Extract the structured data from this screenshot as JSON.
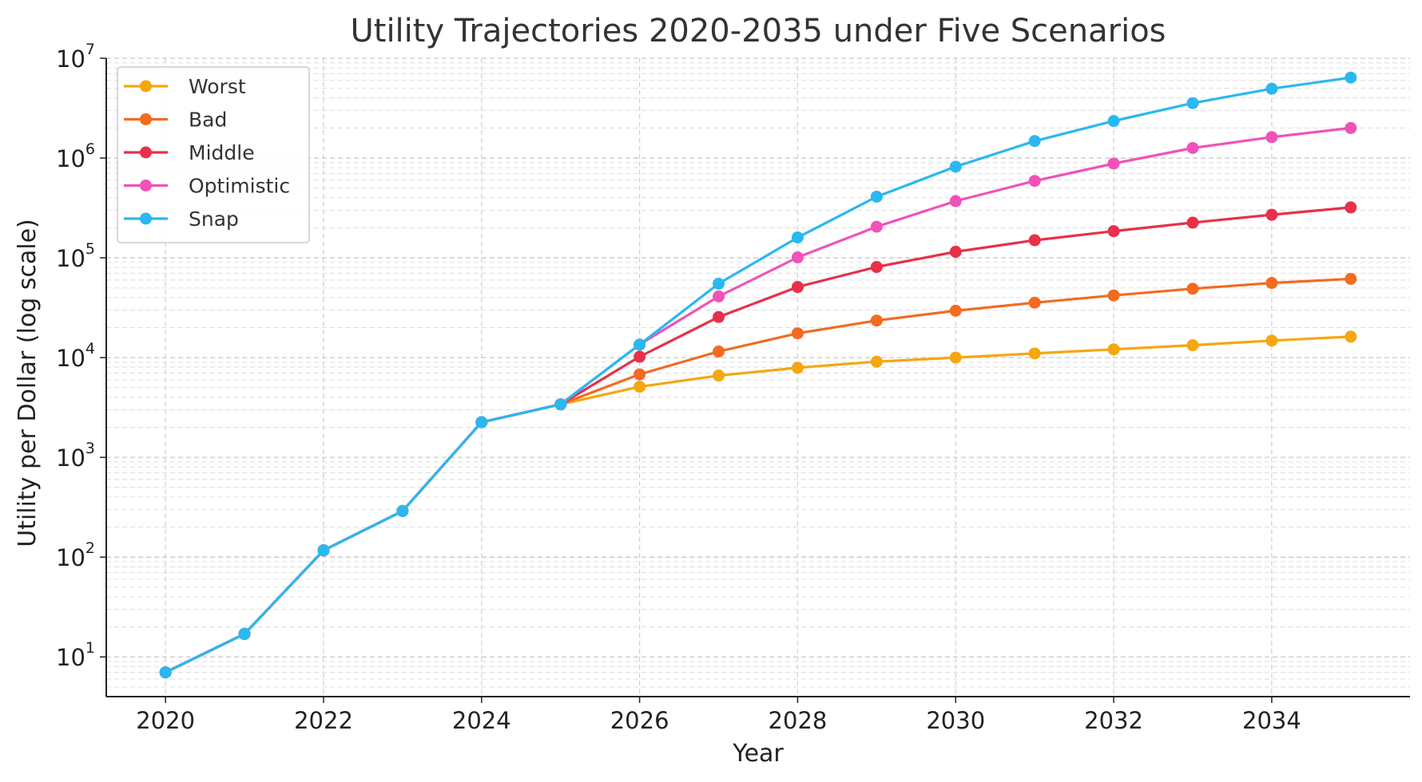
{
  "chart_data": {
    "type": "line",
    "title": "Utility Trajectories 2020-2035 under Five Scenarios",
    "xlabel": "Year",
    "ylabel": "Utility per Dollar (log scale)",
    "y_scale": "log",
    "xlim": [
      2019.25,
      2035.75
    ],
    "ylim": [
      4,
      10000000
    ],
    "x_ticks": [
      2020,
      2022,
      2024,
      2026,
      2028,
      2030,
      2032,
      2034
    ],
    "y_ticks": [
      {
        "value": 10,
        "base": "10",
        "exp": "1"
      },
      {
        "value": 100,
        "base": "10",
        "exp": "2"
      },
      {
        "value": 1000,
        "base": "10",
        "exp": "3"
      },
      {
        "value": 10000,
        "base": "10",
        "exp": "4"
      },
      {
        "value": 100000,
        "base": "10",
        "exp": "5"
      },
      {
        "value": 1000000,
        "base": "10",
        "exp": "6"
      },
      {
        "value": 10000000,
        "base": "10",
        "exp": "7"
      }
    ],
    "grid": true,
    "legend_position": "top-left",
    "x": [
      2020,
      2021,
      2022,
      2023,
      2024,
      2025,
      2026,
      2027,
      2028,
      2029,
      2030,
      2031,
      2032,
      2033,
      2034,
      2035
    ],
    "series": [
      {
        "name": "Worst",
        "color": "#f5a70f",
        "values": [
          7,
          17,
          117,
          290,
          2250,
          3400,
          5100,
          6600,
          7900,
          9100,
          10000,
          11000,
          12100,
          13300,
          14800,
          16200
        ]
      },
      {
        "name": "Bad",
        "color": "#f26b21",
        "values": [
          7,
          17,
          117,
          290,
          2250,
          3400,
          6800,
          11500,
          17500,
          23500,
          29500,
          35500,
          42000,
          49000,
          56000,
          61500
        ]
      },
      {
        "name": "Middle",
        "color": "#e8304a",
        "values": [
          7,
          17,
          117,
          290,
          2250,
          3400,
          10200,
          25500,
          51000,
          81000,
          115000,
          150000,
          185000,
          225000,
          270000,
          320000
        ]
      },
      {
        "name": "Optimistic",
        "color": "#f052b8",
        "values": [
          7,
          17,
          117,
          290,
          2250,
          3400,
          13500,
          41000,
          101000,
          205000,
          370000,
          590000,
          880000,
          1260000,
          1620000,
          2000000
        ]
      },
      {
        "name": "Snap",
        "color": "#2ab8f0",
        "values": [
          7,
          17,
          117,
          290,
          2250,
          3400,
          13500,
          55000,
          160000,
          410000,
          820000,
          1480000,
          2350000,
          3550000,
          4950000,
          6400000
        ]
      }
    ]
  }
}
